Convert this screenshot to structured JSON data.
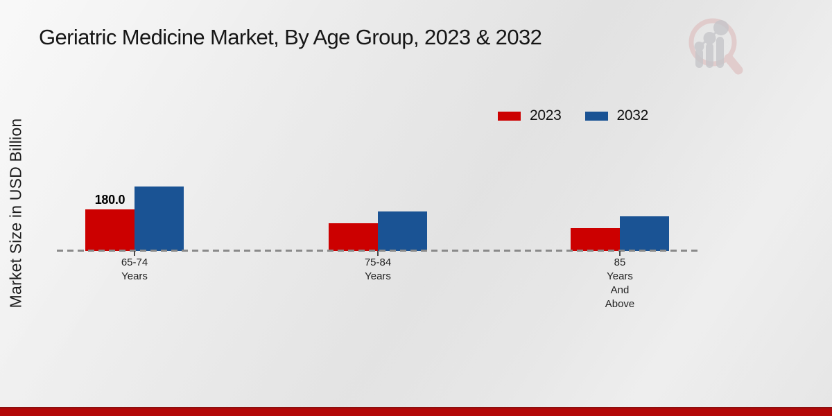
{
  "page": {
    "colors": {
      "series_2023": "#cc0000",
      "series_2032": "#1a5394",
      "footer_bar": "#b30707",
      "baseline": "#8a8a8a"
    }
  },
  "chart_data": {
    "type": "bar",
    "title": "Geriatric Medicine Market, By Age Group, 2023 & 2032",
    "xlabel": "",
    "ylabel": "Market Size in USD Billion",
    "categories": [
      "65-74 Years",
      "75-84 Years",
      "85 Years And Above"
    ],
    "category_lines": [
      [
        "65-74",
        "Years"
      ],
      [
        "75-84",
        "Years"
      ],
      [
        "85",
        "Years",
        "And",
        "Above"
      ]
    ],
    "series": [
      {
        "name": "2023",
        "color": "#cc0000",
        "values": [
          180,
          120,
          100
        ],
        "data_labels": [
          "180.0",
          "",
          ""
        ]
      },
      {
        "name": "2032",
        "color": "#1a5394",
        "values": [
          280,
          170,
          150
        ],
        "data_labels": [
          "",
          "",
          ""
        ]
      }
    ],
    "ylim": [
      0,
      300
    ],
    "grid": false,
    "legend_position": "top-right",
    "baseline_style": "dashed",
    "y_axis_ticks_visible": false
  }
}
